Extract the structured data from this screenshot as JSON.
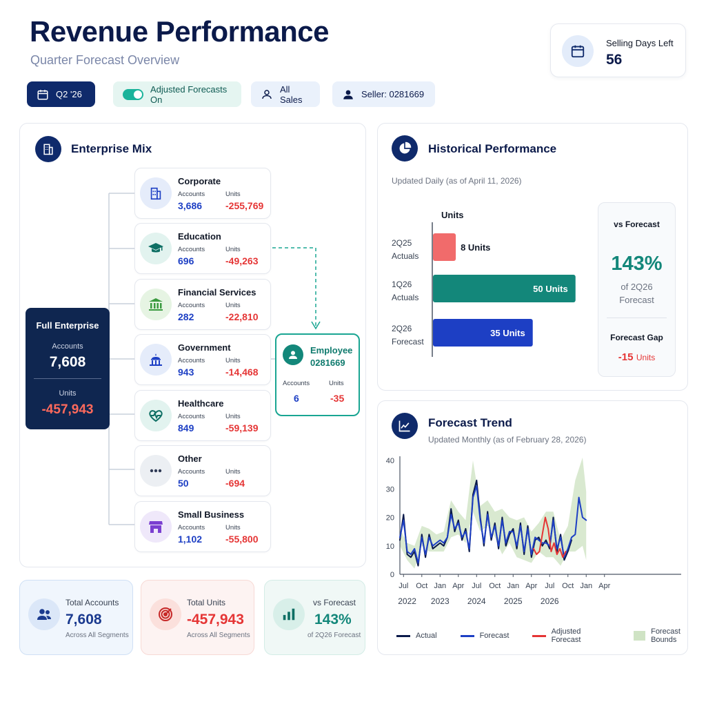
{
  "header": {
    "title": "Revenue Performance",
    "subtitle": "Quarter Forecast Overview"
  },
  "selling_days": {
    "label": "Selling Days Left",
    "value": "56"
  },
  "filters": {
    "quarter": "Q2 '26",
    "adjusted": "Adjusted Forecasts On",
    "scope": "All Sales",
    "seller": "Seller: 0281669"
  },
  "enterprise_mix": {
    "title": "Enterprise Mix",
    "full": {
      "title": "Full Enterprise",
      "accounts_label": "Accounts",
      "accounts": "7,608",
      "units_label": "Units",
      "units": "-457,943"
    },
    "segments": [
      {
        "name": "Corporate",
        "accounts_label": "Accounts",
        "units_label": "Units",
        "accounts": "3,686",
        "units": "-255,769",
        "icon": "building-icon"
      },
      {
        "name": "Education",
        "accounts_label": "Accounts",
        "units_label": "Units",
        "accounts": "696",
        "units": "-49,263",
        "icon": "graduation-cap-icon"
      },
      {
        "name": "Financial Services",
        "accounts_label": "Accounts",
        "units_label": "Units",
        "accounts": "282",
        "units": "-22,810",
        "icon": "bank-icon"
      },
      {
        "name": "Government",
        "accounts_label": "Accounts",
        "units_label": "Units",
        "accounts": "943",
        "units": "-14,468",
        "icon": "capitol-icon"
      },
      {
        "name": "Healthcare",
        "accounts_label": "Accounts",
        "units_label": "Units",
        "accounts": "849",
        "units": "-59,139",
        "icon": "heart-pulse-icon"
      },
      {
        "name": "Other",
        "accounts_label": "Accounts",
        "units_label": "Units",
        "accounts": "50",
        "units": "-694",
        "icon": "more-dots-icon"
      },
      {
        "name": "Small Business",
        "accounts_label": "Accounts",
        "units_label": "Units",
        "accounts": "1,102",
        "units": "-55,800",
        "icon": "storefront-icon"
      }
    ],
    "employee": {
      "title": "Employee",
      "id": "0281669",
      "accounts_label": "Accounts",
      "units_label": "Units",
      "accounts": "6",
      "units": "-35"
    }
  },
  "kpis": [
    {
      "label": "Total Accounts",
      "value": "7,608",
      "sub": "Across All Segments"
    },
    {
      "label": "Total Units",
      "value": "-457,943",
      "sub": "Across All Segments"
    },
    {
      "label": "vs Forecast",
      "value": "143%",
      "sub": "of 2Q26 Forecast"
    }
  ],
  "historical": {
    "title": "Historical Performance",
    "updated": "Updated Daily (as of April 11, 2026)",
    "units_header": "Units",
    "vs_title": "vs Forecast",
    "vs_value": "143%",
    "vs_sub1": "of 2Q26",
    "vs_sub2": "Forecast",
    "gap_title": "Forecast Gap",
    "gap_value": "-15",
    "gap_unit": "Units"
  },
  "trend": {
    "title": "Forecast Trend",
    "updated": "Updated Monthly (as of February 28, 2026)",
    "legend": {
      "actual": "Actual",
      "forecast": "Forecast",
      "adjusted": "Adjusted Forecast",
      "bounds": "Forecast Bounds"
    }
  },
  "colors": {
    "navy": "#0f2a6b",
    "teal": "#13877a",
    "red": "#e53535",
    "salmon": "#f16b6b",
    "blue": "#1d3fc4",
    "bounds": "#cfe3c4"
  },
  "chart_data": [
    {
      "type": "bar",
      "orientation": "horizontal",
      "categories": [
        "2Q25 Actuals",
        "1Q26 Actuals",
        "2Q26 Forecast"
      ],
      "category_lines": [
        [
          "2Q25",
          "Actuals"
        ],
        [
          "1Q26",
          "Actuals"
        ],
        [
          "2Q26",
          "Forecast"
        ]
      ],
      "values": [
        8,
        50,
        35
      ],
      "value_labels": [
        "8 Units",
        "50 Units",
        "35 Units"
      ],
      "bar_colors": [
        "#f16b6b",
        "#13877a",
        "#1d3fc4"
      ],
      "xlabel": "Units",
      "xlim": [
        0,
        52
      ]
    },
    {
      "type": "line",
      "ylim": [
        0,
        40
      ],
      "yticks": [
        0,
        10,
        20,
        30,
        40
      ],
      "xlim": [
        2022.45,
        2026.3
      ],
      "xticks": [
        {
          "v": 2022.5,
          "label": "Jul"
        },
        {
          "v": 2022.75,
          "label": "Oct"
        },
        {
          "v": 2023.0,
          "label": "Jan"
        },
        {
          "v": 2023.25,
          "label": "Apr"
        },
        {
          "v": 2023.5,
          "label": "Jul"
        },
        {
          "v": 2023.75,
          "label": "Oct"
        },
        {
          "v": 2024.0,
          "label": "Jan"
        },
        {
          "v": 2024.25,
          "label": "Apr"
        },
        {
          "v": 2024.5,
          "label": "Jul"
        },
        {
          "v": 2024.75,
          "label": "Oct"
        },
        {
          "v": 2025.0,
          "label": "Jan"
        },
        {
          "v": 2025.25,
          "label": "Apr"
        }
      ],
      "year_labels": [
        {
          "v": 2022.55,
          "label": "2022"
        },
        {
          "v": 2023.0,
          "label": "2023"
        },
        {
          "v": 2023.5,
          "label": "2024"
        },
        {
          "v": 2024.0,
          "label": "2025"
        },
        {
          "v": 2024.5,
          "label": "2026"
        }
      ],
      "series": [
        {
          "name": "Actual",
          "color": "#0b1a4a",
          "x": [
            2022.45,
            2022.5,
            2022.55,
            2022.6,
            2022.65,
            2022.7,
            2022.75,
            2022.8,
            2022.85,
            2022.9,
            2022.95,
            2023.0,
            2023.05,
            2023.1,
            2023.15,
            2023.2,
            2023.25,
            2023.3,
            2023.35,
            2023.4,
            2023.45,
            2023.5,
            2023.55,
            2023.6,
            2023.65,
            2023.7,
            2023.75,
            2023.8,
            2023.85,
            2023.9,
            2023.95,
            2024.0,
            2024.05,
            2024.1,
            2024.15,
            2024.2,
            2024.25,
            2024.3,
            2024.35,
            2024.4,
            2024.45,
            2024.5,
            2024.55,
            2024.6,
            2024.65,
            2024.7,
            2024.75,
            2024.8
          ],
          "y": [
            12,
            21,
            7,
            6,
            8,
            3,
            14,
            6,
            14,
            9,
            10,
            11,
            10,
            13,
            23,
            15,
            19,
            12,
            16,
            8,
            28,
            33,
            20,
            10,
            22,
            12,
            18,
            9,
            20,
            10,
            14,
            16,
            9,
            18,
            7,
            17,
            6,
            12,
            13,
            10,
            12,
            9,
            20,
            8,
            14,
            5,
            8,
            12
          ]
        },
        {
          "name": "Forecast",
          "color": "#1d3fc4",
          "x": [
            2022.45,
            2022.5,
            2022.55,
            2022.6,
            2022.65,
            2022.7,
            2022.75,
            2022.8,
            2022.85,
            2022.9,
            2022.95,
            2023.0,
            2023.05,
            2023.1,
            2023.15,
            2023.2,
            2023.25,
            2023.3,
            2023.35,
            2023.4,
            2023.45,
            2023.5,
            2023.55,
            2023.6,
            2023.65,
            2023.7,
            2023.75,
            2023.8,
            2023.85,
            2023.9,
            2023.95,
            2024.0,
            2024.05,
            2024.1,
            2024.15,
            2024.2,
            2024.25,
            2024.3,
            2024.35,
            2024.4,
            2024.45,
            2024.5,
            2024.55,
            2024.6,
            2024.65,
            2024.7,
            2024.75,
            2024.8,
            2024.85,
            2024.9,
            2024.95,
            2025.0
          ],
          "y": [
            13,
            19,
            8,
            7,
            9,
            4,
            13,
            7,
            13,
            10,
            11,
            12,
            11,
            13,
            21,
            16,
            18,
            13,
            15,
            9,
            27,
            31,
            19,
            11,
            21,
            13,
            17,
            10,
            19,
            11,
            15,
            15,
            10,
            17,
            8,
            16,
            7,
            13,
            12,
            11,
            11,
            10,
            19,
            9,
            13,
            6,
            9,
            13,
            14,
            27,
            20,
            19
          ]
        },
        {
          "name": "Adjusted Forecast",
          "color": "#e53535",
          "x": [
            2024.28,
            2024.32,
            2024.36,
            2024.4,
            2024.44,
            2024.48,
            2024.52,
            2024.56,
            2024.6,
            2024.64,
            2024.68,
            2024.72
          ],
          "y": [
            9,
            7,
            8,
            14,
            20,
            16,
            8,
            11,
            7,
            9,
            6,
            8
          ]
        }
      ],
      "bounds": {
        "name": "Forecast Bounds",
        "color": "#cfe3c4",
        "x": [
          2022.45,
          2022.55,
          2022.65,
          2022.75,
          2022.85,
          2022.95,
          2023.05,
          2023.15,
          2023.25,
          2023.35,
          2023.45,
          2023.55,
          2023.65,
          2023.75,
          2023.85,
          2023.95,
          2024.05,
          2024.15,
          2024.25,
          2024.35,
          2024.45,
          2024.55,
          2024.65,
          2024.75,
          2024.85,
          2024.95,
          2025.0
        ],
        "low": [
          10,
          5,
          2,
          10,
          8,
          8,
          8,
          13,
          14,
          11,
          22,
          15,
          17,
          13,
          7,
          11,
          6,
          5,
          4,
          8,
          6,
          6,
          3,
          8,
          8,
          10,
          5
        ],
        "high": [
          16,
          11,
          10,
          17,
          16,
          14,
          15,
          26,
          22,
          19,
          40,
          24,
          26,
          22,
          23,
          20,
          19,
          20,
          15,
          18,
          22,
          22,
          12,
          17,
          33,
          41,
          29
        ]
      }
    }
  ]
}
